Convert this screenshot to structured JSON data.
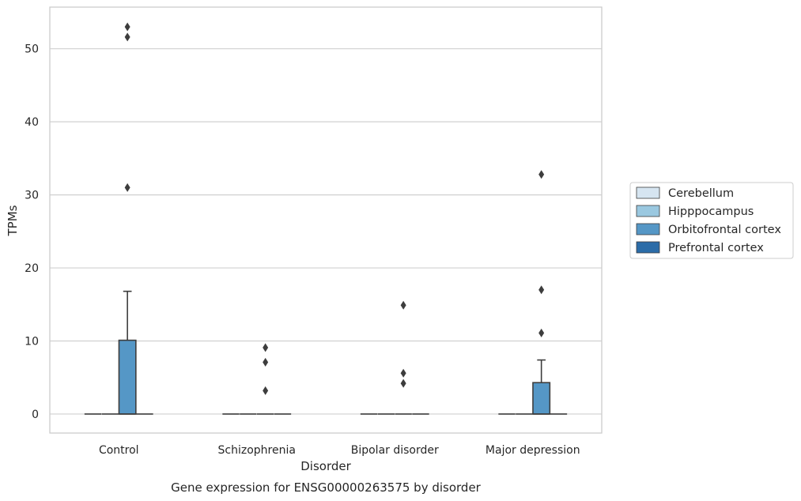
{
  "chart_data": {
    "type": "boxplot",
    "title": "Gene expression for ENSG00000263575 by disorder",
    "xlabel": "Disorder",
    "ylabel": "TPMs",
    "ylim": [
      -2.6,
      55.7
    ],
    "yticks": [
      0,
      10,
      20,
      30,
      40,
      50
    ],
    "grid": "horizontal",
    "legend_position": "right",
    "categories": [
      "Control",
      "Schizophrenia",
      "Bipolar disorder",
      "Major depression"
    ],
    "series": [
      {
        "name": "Cerebellum",
        "color": "#d6e5f1",
        "boxes": [
          {
            "q1": 0,
            "median": 0,
            "q3": 0,
            "whisker_low": 0,
            "whisker_high": 0,
            "outliers": []
          },
          {
            "q1": 0,
            "median": 0,
            "q3": 0,
            "whisker_low": 0,
            "whisker_high": 0,
            "outliers": []
          },
          {
            "q1": 0,
            "median": 0,
            "q3": 0,
            "whisker_low": 0,
            "whisker_high": 0,
            "outliers": []
          },
          {
            "q1": 0,
            "median": 0,
            "q3": 0,
            "whisker_low": 0,
            "whisker_high": 0,
            "outliers": []
          }
        ]
      },
      {
        "name": "Hipppocampus",
        "color": "#9ac8e0",
        "boxes": [
          {
            "q1": 0,
            "median": 0,
            "q3": 0,
            "whisker_low": 0,
            "whisker_high": 0,
            "outliers": []
          },
          {
            "q1": 0,
            "median": 0,
            "q3": 0,
            "whisker_low": 0,
            "whisker_high": 0,
            "outliers": []
          },
          {
            "q1": 0,
            "median": 0,
            "q3": 0,
            "whisker_low": 0,
            "whisker_high": 0,
            "outliers": []
          },
          {
            "q1": 0,
            "median": 0,
            "q3": 0,
            "whisker_low": 0,
            "whisker_high": 0,
            "outliers": []
          }
        ]
      },
      {
        "name": "Orbitofrontal cortex",
        "color": "#5597c6",
        "boxes": [
          {
            "q1": 0,
            "median": 0,
            "q3": 10.1,
            "whisker_low": 0,
            "whisker_high": 16.8,
            "outliers": [
              31.0,
              51.6,
              53.0
            ]
          },
          {
            "q1": 0,
            "median": 0,
            "q3": 0,
            "whisker_low": 0,
            "whisker_high": 0,
            "outliers": [
              3.2,
              7.1,
              9.1
            ]
          },
          {
            "q1": 0,
            "median": 0,
            "q3": 0,
            "whisker_low": 0,
            "whisker_high": 0,
            "outliers": [
              4.2,
              5.6,
              14.9
            ]
          },
          {
            "q1": 0,
            "median": 0,
            "q3": 4.3,
            "whisker_low": 0,
            "whisker_high": 7.4,
            "outliers": [
              11.1,
              17.0,
              32.8
            ]
          }
        ]
      },
      {
        "name": "Prefrontal cortex",
        "color": "#2b6ca8",
        "boxes": [
          {
            "q1": 0,
            "median": 0,
            "q3": 0,
            "whisker_low": 0,
            "whisker_high": 0,
            "outliers": []
          },
          {
            "q1": 0,
            "median": 0,
            "q3": 0,
            "whisker_low": 0,
            "whisker_high": 0,
            "outliers": []
          },
          {
            "q1": 0,
            "median": 0,
            "q3": 0,
            "whisker_low": 0,
            "whisker_high": 0,
            "outliers": []
          },
          {
            "q1": 0,
            "median": 0,
            "q3": 0,
            "whisker_low": 0,
            "whisker_high": 0,
            "outliers": []
          }
        ]
      }
    ]
  }
}
